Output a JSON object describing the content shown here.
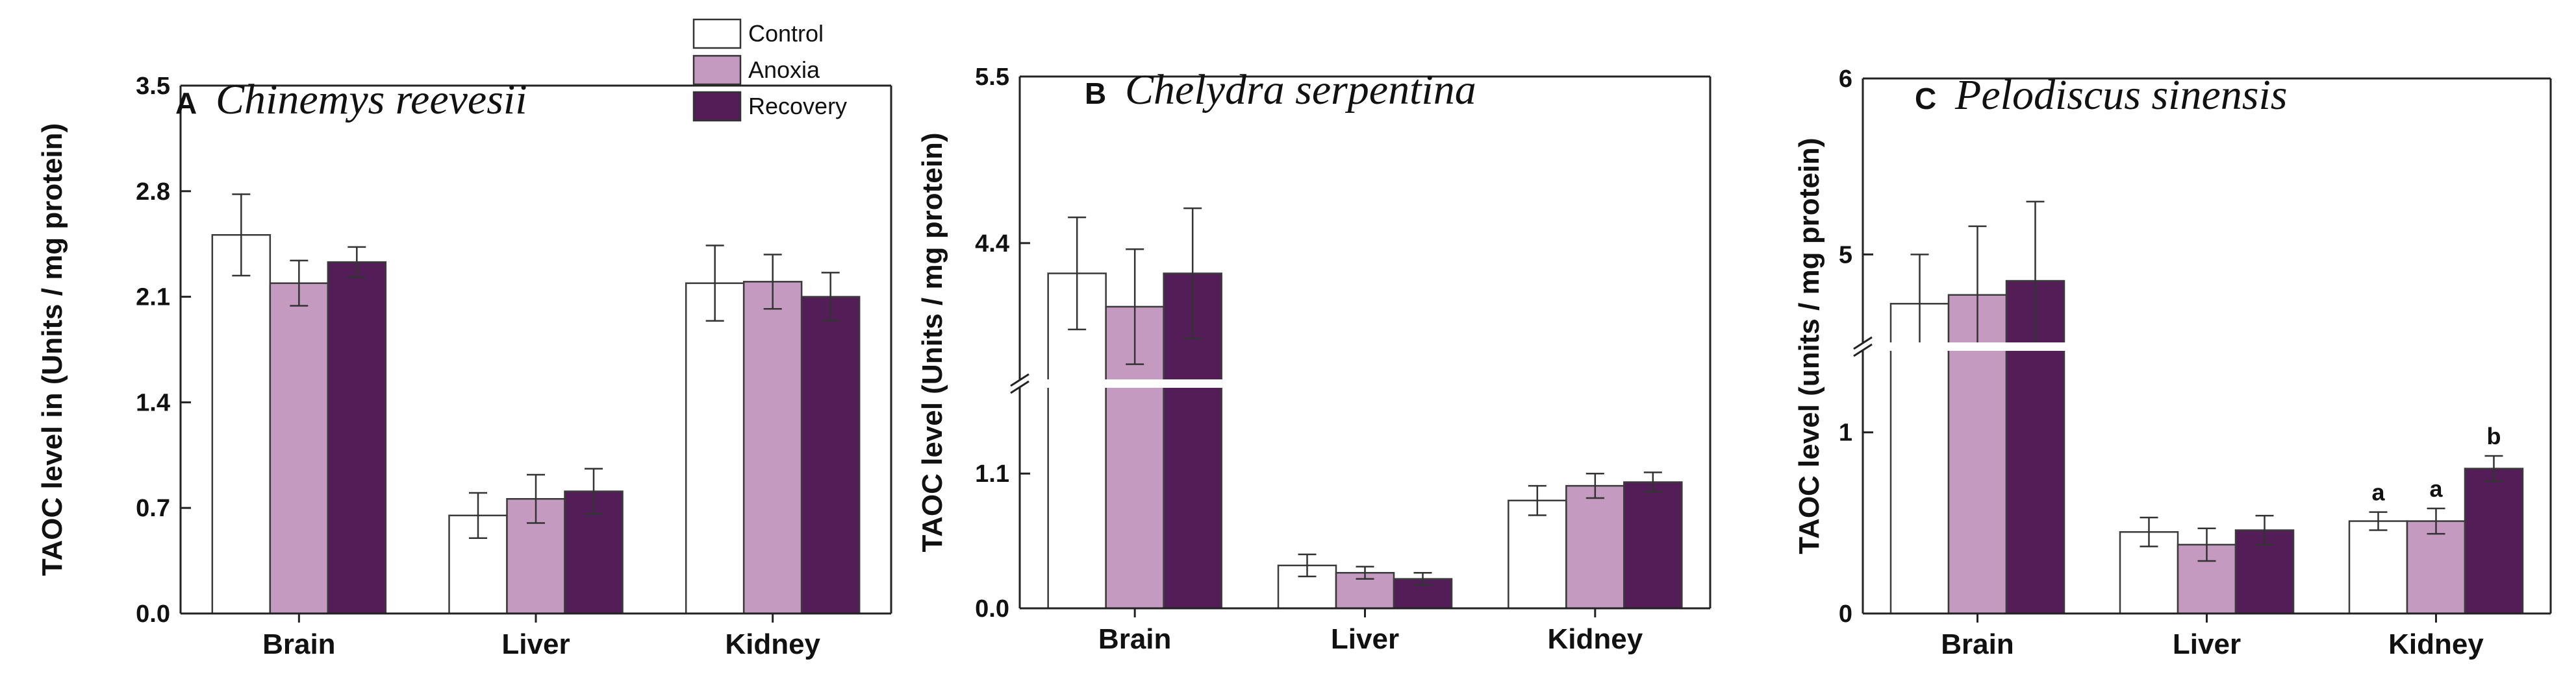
{
  "legend": {
    "items": [
      {
        "label": "Control",
        "color": "#ffffff"
      },
      {
        "label": "Anoxia",
        "color": "#c49ac0"
      },
      {
        "label": "Recovery",
        "color": "#531e57"
      }
    ]
  },
  "chart_data": [
    {
      "type": "bar",
      "panel_letter": "A",
      "title": "Chinemys reevesii",
      "ylabel": "TAOC level in (Units / mg protein)",
      "categories": [
        "Brain",
        "Liver",
        "Kidney"
      ],
      "ylim": [
        0,
        3.5
      ],
      "yticks": [
        "0.0",
        "0.7",
        "1.4",
        "2.1",
        "2.8",
        "3.5"
      ],
      "axis_break": null,
      "series": [
        {
          "name": "Control",
          "values": [
            2.51,
            0.65,
            2.19
          ],
          "errors": [
            0.27,
            0.15,
            0.25
          ]
        },
        {
          "name": "Anoxia",
          "values": [
            2.19,
            0.76,
            2.2
          ],
          "errors": [
            0.15,
            0.16,
            0.18
          ]
        },
        {
          "name": "Recovery",
          "values": [
            2.33,
            0.81,
            2.1
          ],
          "errors": [
            0.1,
            0.15,
            0.16
          ]
        }
      ],
      "annotations": []
    },
    {
      "type": "bar",
      "panel_letter": "B",
      "title": "Chelydra serpentina",
      "ylabel": "TAOC level (Units / mg protein)",
      "categories": [
        "Brain",
        "Liver",
        "Kidney"
      ],
      "ylim": [
        0,
        5.5
      ],
      "yticks": [
        "0.0",
        "1.1",
        "4.4",
        "5.5"
      ],
      "axis_break": [
        1.8,
        3.5
      ],
      "series": [
        {
          "name": "Control",
          "values": [
            4.2,
            0.35,
            0.88
          ],
          "errors": [
            0.37,
            0.09,
            0.12
          ]
        },
        {
          "name": "Anoxia",
          "values": [
            3.98,
            0.29,
            1.0
          ],
          "errors": [
            0.38,
            0.05,
            0.1
          ]
        },
        {
          "name": "Recovery",
          "values": [
            4.2,
            0.24,
            1.03
          ],
          "errors": [
            0.43,
            0.05,
            0.08
          ]
        }
      ],
      "annotations": []
    },
    {
      "type": "bar",
      "panel_letter": "C",
      "title": "Pelodiscus sinensis",
      "ylabel": "TAOC level (units / mg protein)",
      "categories": [
        "Brain",
        "Liver",
        "Kidney"
      ],
      "ylim": [
        0,
        6
      ],
      "yticks": [
        "0",
        "1",
        "5",
        "6"
      ],
      "axis_break": [
        1.45,
        4.5
      ],
      "series": [
        {
          "name": "Control",
          "values": [
            4.72,
            0.45,
            0.51
          ],
          "errors": [
            0.28,
            0.08,
            0.05
          ]
        },
        {
          "name": "Anoxia",
          "values": [
            4.77,
            0.38,
            0.51
          ],
          "errors": [
            0.39,
            0.09,
            0.07
          ]
        },
        {
          "name": "Recovery",
          "values": [
            4.85,
            0.46,
            0.8
          ],
          "errors": [
            0.45,
            0.08,
            0.07
          ]
        }
      ],
      "annotations": [
        {
          "category": "Kidney",
          "series": "Control",
          "text": "a"
        },
        {
          "category": "Kidney",
          "series": "Anoxia",
          "text": "a"
        },
        {
          "category": "Kidney",
          "series": "Recovery",
          "text": "b"
        }
      ]
    }
  ]
}
